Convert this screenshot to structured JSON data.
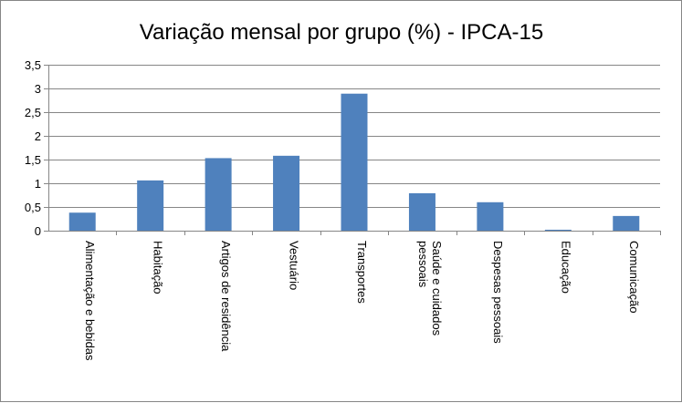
{
  "chart_data": {
    "type": "bar",
    "title": "Variação mensal por grupo (%) - IPCA-15",
    "categories": [
      [
        "Alimentação e bebidas"
      ],
      [
        "Habitação"
      ],
      [
        "Artigos de residência"
      ],
      [
        "Vestuário"
      ],
      [
        "Transportes"
      ],
      [
        "Saúde e cuidados",
        "pessoais"
      ],
      [
        "Despesas pessoais"
      ],
      [
        "Educação"
      ],
      [
        "Comunicação"
      ]
    ],
    "values": [
      0.38,
      1.06,
      1.53,
      1.58,
      2.89,
      0.79,
      0.6,
      0.02,
      0.31
    ],
    "ytick_labels": [
      "0",
      "0,5",
      "1",
      "1,5",
      "2",
      "2,5",
      "3",
      "3,5"
    ],
    "ytick_values": [
      0,
      0.5,
      1,
      1.5,
      2,
      2.5,
      3,
      3.5
    ],
    "ylim": [
      0,
      3.5
    ],
    "grid": true,
    "legend": "none",
    "bar_color": "#4f81bd"
  }
}
